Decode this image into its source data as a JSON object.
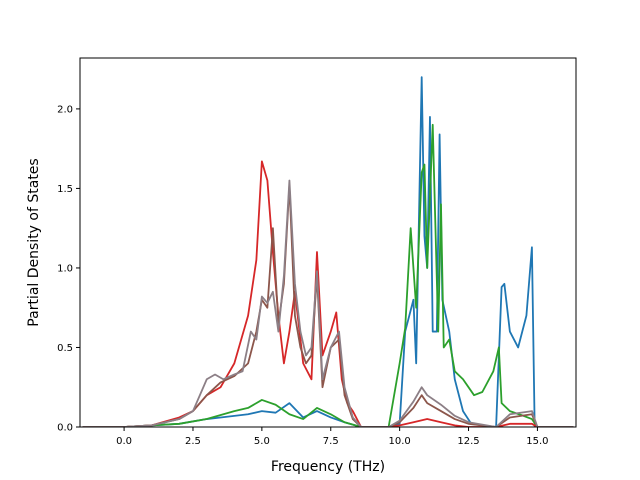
{
  "chart_data": {
    "type": "line",
    "title": "",
    "xlabel": "Frequency (THz)",
    "ylabel": "Partial Density of States",
    "xlim": [
      -1.6,
      16.4
    ],
    "ylim": [
      0,
      2.32
    ],
    "xticks": [
      0.0,
      2.5,
      5.0,
      7.5,
      10.0,
      12.5,
      15.0
    ],
    "xtick_labels": [
      "0.0",
      "2.5",
      "5.0",
      "7.5",
      "10.0",
      "12.5",
      "15.0"
    ],
    "yticks": [
      0.0,
      0.5,
      1.0,
      1.5,
      2.0
    ],
    "ytick_labels": [
      "0.0",
      "0.5",
      "1.0",
      "1.5",
      "2.0"
    ],
    "grid": false,
    "series": [
      {
        "color": "#1f77b4",
        "points": [
          [
            -1.5,
            0
          ],
          [
            0,
            0
          ],
          [
            1,
            0.01
          ],
          [
            2,
            0.02
          ],
          [
            3,
            0.05
          ],
          [
            3.5,
            0.06
          ],
          [
            4,
            0.07
          ],
          [
            4.5,
            0.08
          ],
          [
            5,
            0.1
          ],
          [
            5.5,
            0.09
          ],
          [
            6,
            0.15
          ],
          [
            6.5,
            0.06
          ],
          [
            7,
            0.1
          ],
          [
            7.5,
            0.06
          ],
          [
            8,
            0.03
          ],
          [
            8.6,
            0
          ],
          [
            9.6,
            0
          ],
          [
            10,
            0.02
          ],
          [
            10.2,
            0.6
          ],
          [
            10.5,
            0.8
          ],
          [
            10.6,
            0.4
          ],
          [
            10.8,
            2.2
          ],
          [
            10.9,
            1.2
          ],
          [
            11.0,
            1.0
          ],
          [
            11.1,
            1.95
          ],
          [
            11.2,
            0.6
          ],
          [
            11.35,
            0.6
          ],
          [
            11.45,
            1.84
          ],
          [
            11.55,
            0.8
          ],
          [
            11.8,
            0.6
          ],
          [
            12,
            0.3
          ],
          [
            12.3,
            0.1
          ],
          [
            12.6,
            0.02
          ],
          [
            13.5,
            0
          ],
          [
            13.7,
            0.88
          ],
          [
            13.8,
            0.9
          ],
          [
            14,
            0.6
          ],
          [
            14.3,
            0.5
          ],
          [
            14.6,
            0.7
          ],
          [
            14.8,
            1.13
          ],
          [
            14.9,
            0
          ],
          [
            16.3,
            0
          ]
        ]
      },
      {
        "color": "#2ca02c",
        "points": [
          [
            -1.5,
            0
          ],
          [
            0,
            0
          ],
          [
            1,
            0.01
          ],
          [
            2,
            0.02
          ],
          [
            3,
            0.05
          ],
          [
            4,
            0.1
          ],
          [
            4.5,
            0.12
          ],
          [
            5,
            0.17
          ],
          [
            5.5,
            0.14
          ],
          [
            6,
            0.08
          ],
          [
            6.5,
            0.05
          ],
          [
            7,
            0.12
          ],
          [
            7.5,
            0.08
          ],
          [
            8,
            0.03
          ],
          [
            8.6,
            0
          ],
          [
            9.6,
            0
          ],
          [
            10,
            0.4
          ],
          [
            10.2,
            0.62
          ],
          [
            10.4,
            1.25
          ],
          [
            10.6,
            0.75
          ],
          [
            10.8,
            1.6
          ],
          [
            10.9,
            1.65
          ],
          [
            11.0,
            1.0
          ],
          [
            11.2,
            1.9
          ],
          [
            11.4,
            0.6
          ],
          [
            11.5,
            1.4
          ],
          [
            11.6,
            0.5
          ],
          [
            11.8,
            0.55
          ],
          [
            12,
            0.35
          ],
          [
            12.3,
            0.3
          ],
          [
            12.7,
            0.2
          ],
          [
            13.0,
            0.22
          ],
          [
            13.4,
            0.35
          ],
          [
            13.6,
            0.5
          ],
          [
            13.7,
            0.15
          ],
          [
            14,
            0.1
          ],
          [
            14.5,
            0.07
          ],
          [
            14.8,
            0.05
          ],
          [
            15,
            0
          ],
          [
            16.3,
            0
          ]
        ]
      },
      {
        "color": "#d62728",
        "points": [
          [
            -1.5,
            0
          ],
          [
            0,
            0
          ],
          [
            1,
            0.01
          ],
          [
            2,
            0.06
          ],
          [
            2.5,
            0.1
          ],
          [
            3,
            0.2
          ],
          [
            3.5,
            0.25
          ],
          [
            4,
            0.4
          ],
          [
            4.5,
            0.7
          ],
          [
            4.8,
            1.05
          ],
          [
            5.0,
            1.67
          ],
          [
            5.2,
            1.55
          ],
          [
            5.4,
            1.1
          ],
          [
            5.6,
            0.7
          ],
          [
            5.8,
            0.4
          ],
          [
            6.0,
            0.6
          ],
          [
            6.2,
            0.85
          ],
          [
            6.5,
            0.4
          ],
          [
            6.8,
            0.3
          ],
          [
            7,
            1.1
          ],
          [
            7.2,
            0.45
          ],
          [
            7.5,
            0.6
          ],
          [
            7.7,
            0.72
          ],
          [
            7.9,
            0.3
          ],
          [
            8.1,
            0.15
          ],
          [
            8.3,
            0.1
          ],
          [
            8.6,
            0
          ],
          [
            9.6,
            0
          ],
          [
            10,
            0.01
          ],
          [
            10.5,
            0.03
          ],
          [
            11,
            0.05
          ],
          [
            11.5,
            0.03
          ],
          [
            12,
            0.01
          ],
          [
            12.5,
            0
          ],
          [
            13.5,
            0
          ],
          [
            14,
            0.02
          ],
          [
            14.8,
            0.02
          ],
          [
            15,
            0
          ],
          [
            16.3,
            0
          ]
        ]
      },
      {
        "color": "#8c564b",
        "points": [
          [
            -1.5,
            0
          ],
          [
            0,
            0
          ],
          [
            1,
            0.01
          ],
          [
            2,
            0.05
          ],
          [
            2.5,
            0.1
          ],
          [
            3,
            0.2
          ],
          [
            3.5,
            0.28
          ],
          [
            4,
            0.32
          ],
          [
            4.5,
            0.4
          ],
          [
            4.8,
            0.6
          ],
          [
            5.0,
            0.8
          ],
          [
            5.2,
            0.75
          ],
          [
            5.4,
            1.25
          ],
          [
            5.6,
            0.65
          ],
          [
            5.8,
            0.9
          ],
          [
            6.0,
            1.52
          ],
          [
            6.2,
            0.7
          ],
          [
            6.4,
            0.5
          ],
          [
            6.6,
            0.4
          ],
          [
            6.8,
            0.45
          ],
          [
            7.0,
            0.95
          ],
          [
            7.2,
            0.25
          ],
          [
            7.5,
            0.5
          ],
          [
            7.8,
            0.55
          ],
          [
            8.0,
            0.2
          ],
          [
            8.3,
            0.05
          ],
          [
            8.6,
            0
          ],
          [
            9.6,
            0
          ],
          [
            10,
            0.03
          ],
          [
            10.5,
            0.12
          ],
          [
            10.8,
            0.2
          ],
          [
            11,
            0.15
          ],
          [
            11.5,
            0.1
          ],
          [
            12,
            0.05
          ],
          [
            12.5,
            0.02
          ],
          [
            13.5,
            0
          ],
          [
            14,
            0.06
          ],
          [
            14.8,
            0.08
          ],
          [
            15,
            0
          ],
          [
            16.3,
            0
          ]
        ]
      },
      {
        "color": "#8c7f86",
        "points": [
          [
            -1.5,
            0
          ],
          [
            0,
            0
          ],
          [
            1,
            0.01
          ],
          [
            2,
            0.05
          ],
          [
            2.5,
            0.1
          ],
          [
            3,
            0.3
          ],
          [
            3.3,
            0.33
          ],
          [
            3.6,
            0.3
          ],
          [
            4,
            0.33
          ],
          [
            4.3,
            0.35
          ],
          [
            4.6,
            0.6
          ],
          [
            4.8,
            0.55
          ],
          [
            5.0,
            0.82
          ],
          [
            5.2,
            0.78
          ],
          [
            5.4,
            0.85
          ],
          [
            5.6,
            0.6
          ],
          [
            5.8,
            0.95
          ],
          [
            6.0,
            1.55
          ],
          [
            6.2,
            0.9
          ],
          [
            6.4,
            0.6
          ],
          [
            6.6,
            0.45
          ],
          [
            6.8,
            0.5
          ],
          [
            7.0,
            0.98
          ],
          [
            7.2,
            0.3
          ],
          [
            7.5,
            0.5
          ],
          [
            7.8,
            0.6
          ],
          [
            8.0,
            0.25
          ],
          [
            8.3,
            0.06
          ],
          [
            8.6,
            0
          ],
          [
            9.6,
            0
          ],
          [
            10,
            0.04
          ],
          [
            10.5,
            0.16
          ],
          [
            10.8,
            0.25
          ],
          [
            11,
            0.2
          ],
          [
            11.5,
            0.14
          ],
          [
            12,
            0.07
          ],
          [
            12.5,
            0.03
          ],
          [
            13.5,
            0
          ],
          [
            14,
            0.08
          ],
          [
            14.8,
            0.1
          ],
          [
            15,
            0
          ],
          [
            16.3,
            0
          ]
        ]
      }
    ]
  }
}
